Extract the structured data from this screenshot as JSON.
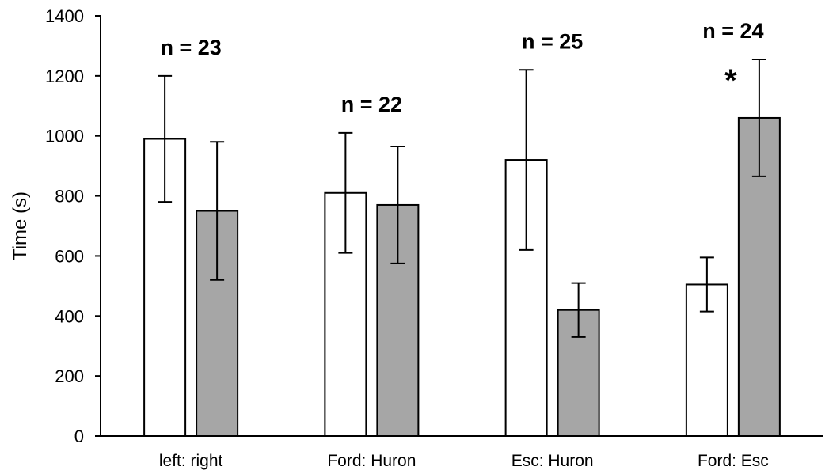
{
  "chart_data": {
    "type": "bar",
    "title": "",
    "xlabel": "",
    "ylabel": "Time (s)",
    "ylim": [
      0,
      1400
    ],
    "yticks": [
      0,
      200,
      400,
      600,
      800,
      1000,
      1200,
      1400
    ],
    "grid": false,
    "legend": "none",
    "categories": [
      "left: right",
      "Ford: Huron",
      "Esc: Huron",
      "Ford: Esc"
    ],
    "series": [
      {
        "color": "#ffffff",
        "values": [
          990,
          810,
          920,
          505
        ],
        "error": [
          210,
          200,
          300,
          90
        ]
      },
      {
        "color": "#a6a6a6",
        "values": [
          750,
          770,
          420,
          1060
        ],
        "error": [
          230,
          195,
          90,
          195
        ]
      }
    ],
    "annotations": {
      "n_labels": [
        "n = 23",
        "n = 22",
        "n = 25",
        "n = 24"
      ],
      "significance": [
        "",
        "",
        "",
        "*"
      ]
    }
  }
}
